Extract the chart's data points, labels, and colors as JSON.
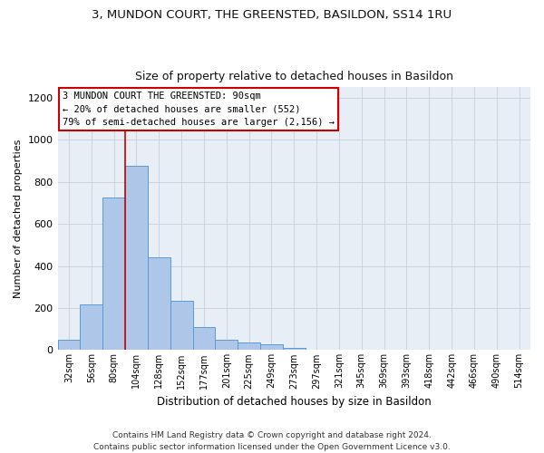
{
  "title": "3, MUNDON COURT, THE GREENSTED, BASILDON, SS14 1RU",
  "subtitle": "Size of property relative to detached houses in Basildon",
  "xlabel": "Distribution of detached houses by size in Basildon",
  "ylabel": "Number of detached properties",
  "bar_labels": [
    "32sqm",
    "56sqm",
    "80sqm",
    "104sqm",
    "128sqm",
    "152sqm",
    "177sqm",
    "201sqm",
    "225sqm",
    "249sqm",
    "273sqm",
    "297sqm",
    "321sqm",
    "345sqm",
    "369sqm",
    "393sqm",
    "418sqm",
    "442sqm",
    "466sqm",
    "490sqm",
    "514sqm"
  ],
  "bar_values": [
    50,
    215,
    725,
    875,
    440,
    235,
    110,
    48,
    35,
    28,
    12,
    0,
    0,
    0,
    0,
    0,
    0,
    0,
    0,
    0,
    0
  ],
  "bar_color": "#aec6e8",
  "bar_edge_color": "#5b9bd5",
  "vline_color": "#cc0000",
  "vline_pos": 2.5,
  "ylim": [
    0,
    1250
  ],
  "yticks": [
    0,
    200,
    400,
    600,
    800,
    1000,
    1200
  ],
  "annotation_box_text": "3 MUNDON COURT THE GREENSTED: 90sqm\n← 20% of detached houses are smaller (552)\n79% of semi-detached houses are larger (2,156) →",
  "footnote": "Contains HM Land Registry data © Crown copyright and database right 2024.\nContains public sector information licensed under the Open Government Licence v3.0.",
  "background_color": "#ffffff",
  "axes_bg_color": "#e8eef5",
  "grid_color": "#c8cdd8",
  "title_fontsize": 9.5,
  "subtitle_fontsize": 9,
  "ylabel_fontsize": 8,
  "xlabel_fontsize": 8.5,
  "tick_fontsize": 7,
  "annotation_fontsize": 7.5,
  "footnote_fontsize": 6.5
}
